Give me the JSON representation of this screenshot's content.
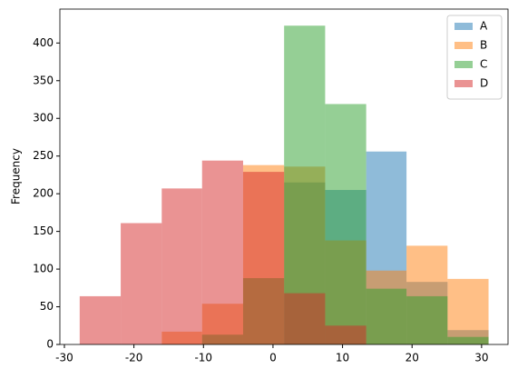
{
  "chart_data": {
    "type": "histogram",
    "ylabel": "Frequency",
    "bins": [
      -27.8,
      -21.9,
      -16.0,
      -10.2,
      -4.3,
      1.6,
      7.5,
      13.4,
      19.2,
      25.1,
      31.0
    ],
    "series": [
      {
        "name": "A",
        "color": "#1f77b4",
        "values": [
          0,
          0,
          0,
          0,
          0,
          215,
          205,
          256,
          83,
          19
        ]
      },
      {
        "name": "B",
        "color": "#ff7f0e",
        "values": [
          0,
          0,
          17,
          54,
          238,
          236,
          138,
          98,
          131,
          87
        ]
      },
      {
        "name": "C",
        "color": "#2ca02c",
        "values": [
          0,
          0,
          0,
          13,
          88,
          423,
          319,
          74,
          64,
          10
        ]
      },
      {
        "name": "D",
        "color": "#d62728",
        "values": [
          64,
          161,
          207,
          244,
          229,
          68,
          25,
          0,
          0,
          0
        ]
      }
    ],
    "xlim": [
      -30.65,
      33.8
    ],
    "ylim": [
      0,
      445
    ],
    "xticks": [
      -30,
      -20,
      -10,
      0,
      10,
      20,
      30
    ],
    "yticks": [
      0,
      50,
      100,
      150,
      200,
      250,
      300,
      350,
      400
    ],
    "alpha": 0.5,
    "legend": "upper right"
  }
}
